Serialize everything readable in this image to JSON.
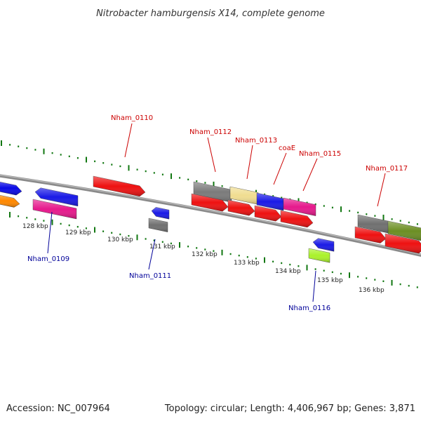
{
  "title": "Nitrobacter hamburgensis X14, complete genome",
  "footer": {
    "accession": "Accession: NC_007964",
    "summary": "Topology: circular; Length: 4,406,967 bp; Genes: 3,871"
  },
  "colors": {
    "forward_label": "#cc0000",
    "reverse_label": "#000099",
    "backbone": "#777777",
    "tick": "#117711"
  },
  "ticks": [
    {
      "label": "128 kbp",
      "kbp": 128
    },
    {
      "label": "129 kbp",
      "kbp": 129
    },
    {
      "label": "130 kbp",
      "kbp": 130
    },
    {
      "label": "131 kbp",
      "kbp": 131
    },
    {
      "label": "132 kbp",
      "kbp": 132
    },
    {
      "label": "133 kbp",
      "kbp": 133
    },
    {
      "label": "134 kbp",
      "kbp": 134
    },
    {
      "label": "135 kbp",
      "kbp": 135
    },
    {
      "label": "136 kbp",
      "kbp": 136
    }
  ],
  "gene_labels": [
    {
      "label": "Nham_0110",
      "strand": "forward"
    },
    {
      "label": "Nham_0112",
      "strand": "forward"
    },
    {
      "label": "Nham_0113",
      "strand": "forward"
    },
    {
      "label": "coaE",
      "strand": "forward"
    },
    {
      "label": "Nham_0115",
      "strand": "forward"
    },
    {
      "label": "Nham_0117",
      "strand": "forward"
    },
    {
      "label": "Nham_0109",
      "strand": "reverse"
    },
    {
      "label": "Nham_0111",
      "strand": "reverse"
    },
    {
      "label": "Nham_0116",
      "strand": "reverse"
    }
  ]
}
